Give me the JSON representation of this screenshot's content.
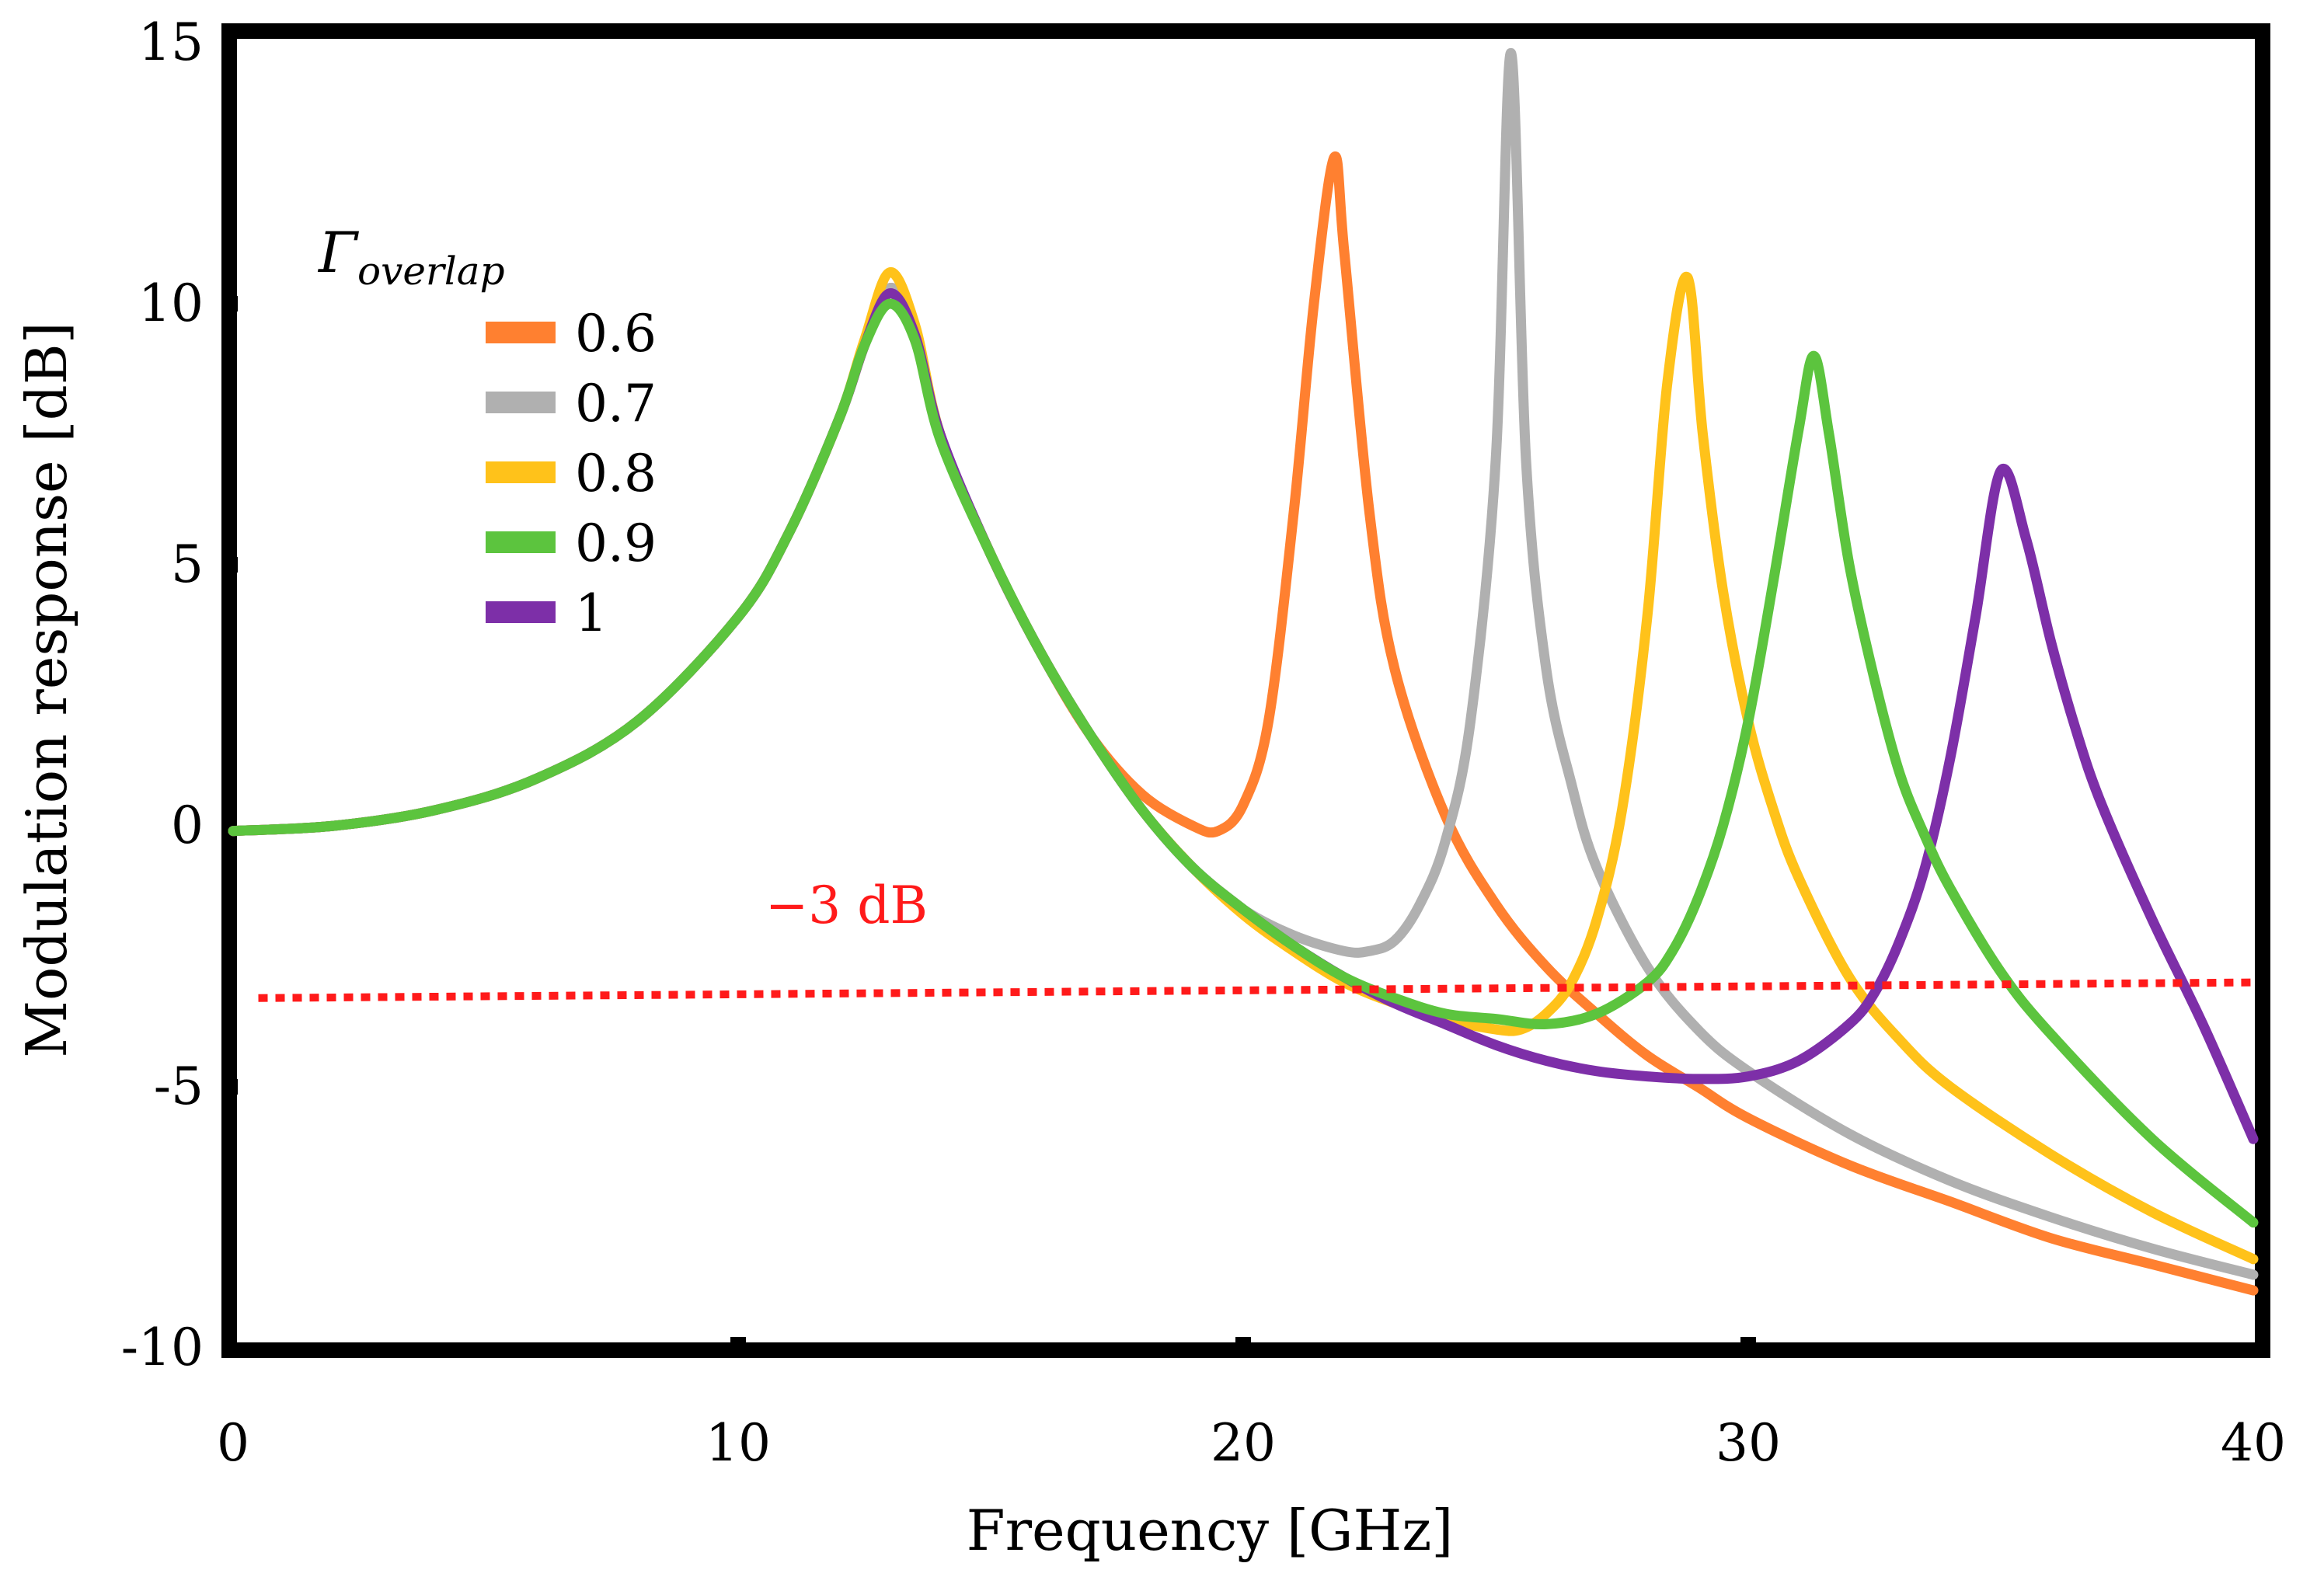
{
  "chart_data": {
    "type": "line",
    "title": "",
    "xlabel": "Frequency [GHz]",
    "ylabel": "Modulation response [dB]",
    "xlim": [
      0,
      40
    ],
    "ylim": [
      -10,
      15
    ],
    "xticks": [
      0,
      10,
      20,
      30,
      40
    ],
    "xtick_labels": [
      "0",
      "10",
      "20",
      "30",
      "40"
    ],
    "yticks": [
      -10,
      -5,
      0,
      5,
      10,
      15
    ],
    "ytick_labels": [
      "-10",
      "-5",
      "0",
      "5",
      "10",
      "15"
    ],
    "grid": false,
    "legend": {
      "title_main": "Γ",
      "title_sub": "overlap",
      "placement": "upper-left"
    },
    "reference_line": {
      "label": "−3 dB",
      "x": [
        0.5,
        40
      ],
      "y": [
        -3.3,
        -3.0
      ],
      "color": "#ff1a1a"
    },
    "series": [
      {
        "name": "0.6",
        "color": "#ff8030",
        "x": [
          0,
          2,
          4,
          6,
          8,
          10,
          11,
          12,
          12.5,
          13,
          13.5,
          14,
          15,
          16,
          17,
          18,
          19,
          19.5,
          20,
          20.5,
          21,
          21.4,
          21.8,
          22,
          22.5,
          23,
          24,
          25,
          26,
          27,
          28,
          29,
          30,
          32,
          34,
          36,
          38,
          40
        ],
        "y": [
          -0.1,
          0,
          0.3,
          0.9,
          2,
          4,
          5.6,
          7.8,
          9.2,
          10.3,
          9.5,
          7.5,
          5.2,
          3.3,
          1.7,
          0.6,
          0,
          -0.1,
          0.4,
          2,
          6,
          10,
          12.8,
          11,
          6,
          3,
          0.2,
          -1.5,
          -2.7,
          -3.6,
          -4.4,
          -5,
          -5.6,
          -6.5,
          -7.2,
          -7.9,
          -8.4,
          -8.9
        ]
      },
      {
        "name": "0.7",
        "color": "#b0b0b0",
        "x": [
          0,
          2,
          4,
          6,
          8,
          10,
          11,
          12,
          12.5,
          13,
          13.5,
          14,
          15,
          16,
          17,
          18,
          19,
          20,
          21,
          22,
          22.5,
          23,
          23.5,
          24,
          24.5,
          25,
          25.3,
          25.6,
          26,
          26.5,
          27,
          28,
          29,
          30,
          32,
          34,
          36,
          38,
          40
        ],
        "y": [
          -0.1,
          0,
          0.3,
          0.9,
          2,
          4,
          5.6,
          7.8,
          9.2,
          10.3,
          9.5,
          7.5,
          5.2,
          3.3,
          1.7,
          0.3,
          -0.8,
          -1.6,
          -2.1,
          -2.4,
          -2.4,
          -2.2,
          -1.5,
          -0.3,
          2,
          7,
          14.8,
          7,
          3,
          0.8,
          -0.8,
          -2.7,
          -3.9,
          -4.7,
          -5.9,
          -6.8,
          -7.5,
          -8.1,
          -8.6
        ]
      },
      {
        "name": "0.8",
        "color": "#ffc21a",
        "x": [
          0,
          2,
          4,
          6,
          8,
          10,
          11,
          12,
          12.5,
          13,
          13.5,
          14,
          15,
          16,
          17,
          18,
          19,
          20,
          21,
          22,
          23,
          24,
          25,
          25.5,
          26,
          26.5,
          27,
          27.5,
          28,
          28.4,
          28.8,
          29.1,
          29.5,
          30,
          30.5,
          31,
          32,
          33,
          34,
          36,
          38,
          40
        ],
        "y": [
          -0.1,
          0,
          0.3,
          0.9,
          2,
          4,
          5.6,
          7.8,
          9.3,
          10.6,
          9.6,
          7.5,
          5.2,
          3.3,
          1.7,
          0.3,
          -0.8,
          -1.7,
          -2.4,
          -3,
          -3.4,
          -3.7,
          -3.9,
          -3.9,
          -3.6,
          -3,
          -1.8,
          0.3,
          4,
          8.5,
          10.5,
          7.5,
          4.5,
          2,
          0.3,
          -1,
          -2.9,
          -4.1,
          -5,
          -6.3,
          -7.4,
          -8.3
        ]
      },
      {
        "name": "0.9",
        "color": "#5cc43e",
        "x": [
          0,
          2,
          4,
          6,
          8,
          10,
          11,
          12,
          12.5,
          13,
          13.5,
          14,
          15,
          16,
          17,
          18,
          19,
          20,
          21,
          22,
          23,
          24,
          25,
          26,
          27,
          28,
          28.5,
          29,
          29.5,
          30,
          30.5,
          31,
          31.3,
          31.6,
          32,
          32.5,
          33,
          33.5,
          34,
          35,
          36,
          38,
          40
        ],
        "y": [
          -0.1,
          0,
          0.3,
          0.9,
          2,
          4,
          5.6,
          7.8,
          9.2,
          10,
          9.3,
          7.4,
          5.2,
          3.3,
          1.7,
          0.3,
          -0.8,
          -1.6,
          -2.3,
          -2.9,
          -3.3,
          -3.6,
          -3.7,
          -3.8,
          -3.6,
          -3,
          -2.4,
          -1.4,
          0,
          2,
          4.7,
          7.6,
          9,
          7.5,
          5,
          2.8,
          1,
          -0.2,
          -1.2,
          -2.8,
          -4,
          -6,
          -7.6
        ]
      },
      {
        "name": "1",
        "color": "#7d2fa8",
        "x": [
          0,
          2,
          4,
          6,
          8,
          10,
          11,
          12,
          12.5,
          13,
          13.5,
          14,
          15,
          16,
          17,
          18,
          19,
          20,
          21,
          22,
          23,
          24,
          25,
          26,
          27,
          28,
          29,
          30,
          31,
          32,
          32.5,
          33,
          33.5,
          34,
          34.5,
          35,
          35.5,
          36,
          36.5,
          37,
          38,
          39,
          40
        ],
        "y": [
          -0.1,
          0,
          0.3,
          0.9,
          2,
          4,
          5.6,
          7.8,
          9.2,
          10.2,
          9.4,
          7.5,
          5.2,
          3.3,
          1.7,
          0.3,
          -0.8,
          -1.6,
          -2.3,
          -2.9,
          -3.4,
          -3.8,
          -4.2,
          -4.5,
          -4.7,
          -4.8,
          -4.85,
          -4.8,
          -4.5,
          -3.8,
          -3.2,
          -2.2,
          -0.8,
          1.3,
          4,
          6.8,
          5.5,
          3.5,
          1.8,
          0.4,
          -1.8,
          -3.8,
          -6
        ]
      }
    ]
  }
}
